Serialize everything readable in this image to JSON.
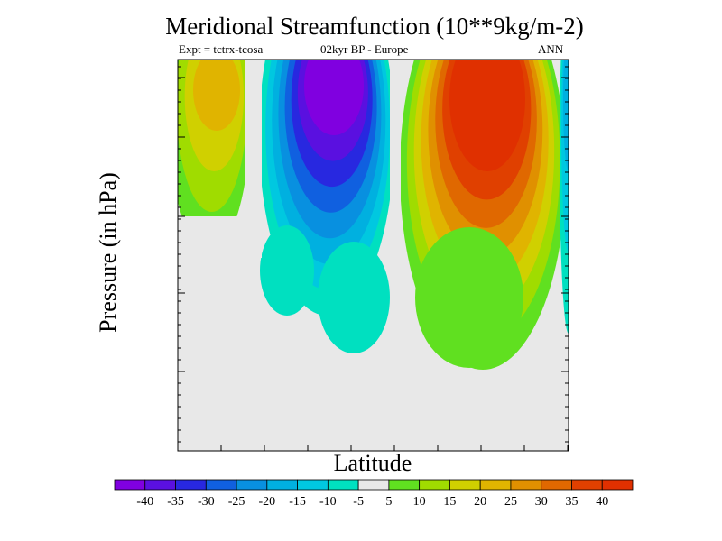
{
  "title": "Meridional Streamfunction (10**9kg/m-2)",
  "subtitle_left": "Expt = tctrx-tcosa",
  "subtitle_center": "02kyr BP - Europe",
  "subtitle_right": "ANN",
  "ylabel": "Pressure (in hPa)",
  "xlabel": "Latitude",
  "colors": {
    "background_fill": "#e8e8e8",
    "axis": "#000000"
  },
  "chart_data": {
    "type": "contour-filled",
    "title": "Meridional Streamfunction (10**9kg/m-2)",
    "xlabel": "Latitude",
    "ylabel": "Pressure (in hPa)",
    "colorbar": {
      "tick_labels": [
        "-40",
        "-35",
        "-30",
        "-25",
        "-20",
        "-15",
        "-10",
        "-5",
        "5",
        "10",
        "15",
        "20",
        "25",
        "30",
        "35",
        "40"
      ],
      "bins": [
        {
          "range": "< -40",
          "color": "#8000e0"
        },
        {
          "range": "-40 to -35",
          "color": "#5a10e0"
        },
        {
          "range": "-35 to -30",
          "color": "#2828e0"
        },
        {
          "range": "-30 to -25",
          "color": "#1060e0"
        },
        {
          "range": "-25 to -20",
          "color": "#0890e0"
        },
        {
          "range": "-20 to -15",
          "color": "#00b0e0"
        },
        {
          "range": "-15 to -10",
          "color": "#00c8e0"
        },
        {
          "range": "-10 to -5",
          "color": "#00e0c0"
        },
        {
          "range": "-5 to 5",
          "color": "#e8e8e8"
        },
        {
          "range": "5 to 10",
          "color": "#60e020"
        },
        {
          "range": "10 to 15",
          "color": "#a0dc00"
        },
        {
          "range": "15 to 20",
          "color": "#d0d000"
        },
        {
          "range": "20 to 25",
          "color": "#e0b400"
        },
        {
          "range": "25 to 30",
          "color": "#e09000"
        },
        {
          "range": "30 to 35",
          "color": "#e06800"
        },
        {
          "range": "35 to 40",
          "color": "#e04000"
        },
        {
          "range": "> 40",
          "color": "#e03000"
        }
      ]
    },
    "cells": [
      {
        "name": "northern-positive-cell",
        "peak": "> 40",
        "max_level_index": 16
      },
      {
        "name": "tropical-negative-cell",
        "peak": "< -40",
        "max_level_index": 0
      },
      {
        "name": "southern-positive-cell",
        "peak": "20 to 25",
        "max_level_index": 12
      },
      {
        "name": "edge-negative-cell",
        "peak": "-20 to -15",
        "max_level_index": 5
      }
    ]
  }
}
